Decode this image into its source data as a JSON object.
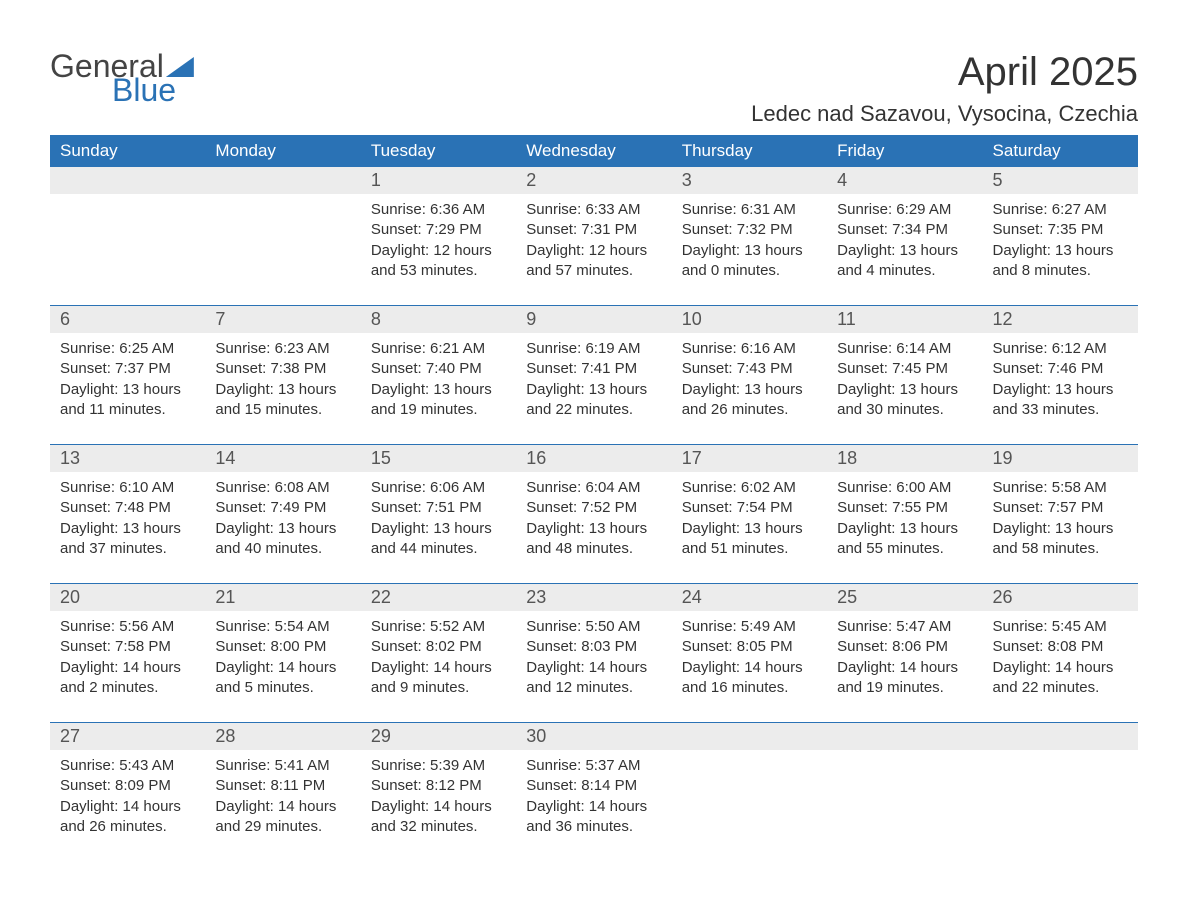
{
  "brand": {
    "word1": "General",
    "word2": "Blue"
  },
  "title": "April 2025",
  "location": "Ledec nad Sazavou, Vysocina, Czechia",
  "colors": {
    "header_bg": "#2a72b5",
    "header_fg": "#ffffff",
    "daynum_bg": "#ececec",
    "text": "#333333",
    "page_bg": "#ffffff"
  },
  "fonts": {
    "title_size": 40,
    "location_size": 22,
    "dow_size": 17,
    "daynum_size": 18,
    "cell_size": 15
  },
  "dow": [
    "Sunday",
    "Monday",
    "Tuesday",
    "Wednesday",
    "Thursday",
    "Friday",
    "Saturday"
  ],
  "labels": {
    "sunrise": "Sunrise",
    "sunset": "Sunset",
    "daylight": "Daylight"
  },
  "weeks": [
    [
      null,
      null,
      {
        "n": "1",
        "sr": "6:36 AM",
        "ss": "7:29 PM",
        "dl": "12 hours and 53 minutes."
      },
      {
        "n": "2",
        "sr": "6:33 AM",
        "ss": "7:31 PM",
        "dl": "12 hours and 57 minutes."
      },
      {
        "n": "3",
        "sr": "6:31 AM",
        "ss": "7:32 PM",
        "dl": "13 hours and 0 minutes."
      },
      {
        "n": "4",
        "sr": "6:29 AM",
        "ss": "7:34 PM",
        "dl": "13 hours and 4 minutes."
      },
      {
        "n": "5",
        "sr": "6:27 AM",
        "ss": "7:35 PM",
        "dl": "13 hours and 8 minutes."
      }
    ],
    [
      {
        "n": "6",
        "sr": "6:25 AM",
        "ss": "7:37 PM",
        "dl": "13 hours and 11 minutes."
      },
      {
        "n": "7",
        "sr": "6:23 AM",
        "ss": "7:38 PM",
        "dl": "13 hours and 15 minutes."
      },
      {
        "n": "8",
        "sr": "6:21 AM",
        "ss": "7:40 PM",
        "dl": "13 hours and 19 minutes."
      },
      {
        "n": "9",
        "sr": "6:19 AM",
        "ss": "7:41 PM",
        "dl": "13 hours and 22 minutes."
      },
      {
        "n": "10",
        "sr": "6:16 AM",
        "ss": "7:43 PM",
        "dl": "13 hours and 26 minutes."
      },
      {
        "n": "11",
        "sr": "6:14 AM",
        "ss": "7:45 PM",
        "dl": "13 hours and 30 minutes."
      },
      {
        "n": "12",
        "sr": "6:12 AM",
        "ss": "7:46 PM",
        "dl": "13 hours and 33 minutes."
      }
    ],
    [
      {
        "n": "13",
        "sr": "6:10 AM",
        "ss": "7:48 PM",
        "dl": "13 hours and 37 minutes."
      },
      {
        "n": "14",
        "sr": "6:08 AM",
        "ss": "7:49 PM",
        "dl": "13 hours and 40 minutes."
      },
      {
        "n": "15",
        "sr": "6:06 AM",
        "ss": "7:51 PM",
        "dl": "13 hours and 44 minutes."
      },
      {
        "n": "16",
        "sr": "6:04 AM",
        "ss": "7:52 PM",
        "dl": "13 hours and 48 minutes."
      },
      {
        "n": "17",
        "sr": "6:02 AM",
        "ss": "7:54 PM",
        "dl": "13 hours and 51 minutes."
      },
      {
        "n": "18",
        "sr": "6:00 AM",
        "ss": "7:55 PM",
        "dl": "13 hours and 55 minutes."
      },
      {
        "n": "19",
        "sr": "5:58 AM",
        "ss": "7:57 PM",
        "dl": "13 hours and 58 minutes."
      }
    ],
    [
      {
        "n": "20",
        "sr": "5:56 AM",
        "ss": "7:58 PM",
        "dl": "14 hours and 2 minutes."
      },
      {
        "n": "21",
        "sr": "5:54 AM",
        "ss": "8:00 PM",
        "dl": "14 hours and 5 minutes."
      },
      {
        "n": "22",
        "sr": "5:52 AM",
        "ss": "8:02 PM",
        "dl": "14 hours and 9 minutes."
      },
      {
        "n": "23",
        "sr": "5:50 AM",
        "ss": "8:03 PM",
        "dl": "14 hours and 12 minutes."
      },
      {
        "n": "24",
        "sr": "5:49 AM",
        "ss": "8:05 PM",
        "dl": "14 hours and 16 minutes."
      },
      {
        "n": "25",
        "sr": "5:47 AM",
        "ss": "8:06 PM",
        "dl": "14 hours and 19 minutes."
      },
      {
        "n": "26",
        "sr": "5:45 AM",
        "ss": "8:08 PM",
        "dl": "14 hours and 22 minutes."
      }
    ],
    [
      {
        "n": "27",
        "sr": "5:43 AM",
        "ss": "8:09 PM",
        "dl": "14 hours and 26 minutes."
      },
      {
        "n": "28",
        "sr": "5:41 AM",
        "ss": "8:11 PM",
        "dl": "14 hours and 29 minutes."
      },
      {
        "n": "29",
        "sr": "5:39 AM",
        "ss": "8:12 PM",
        "dl": "14 hours and 32 minutes."
      },
      {
        "n": "30",
        "sr": "5:37 AM",
        "ss": "8:14 PM",
        "dl": "14 hours and 36 minutes."
      },
      null,
      null,
      null
    ]
  ]
}
